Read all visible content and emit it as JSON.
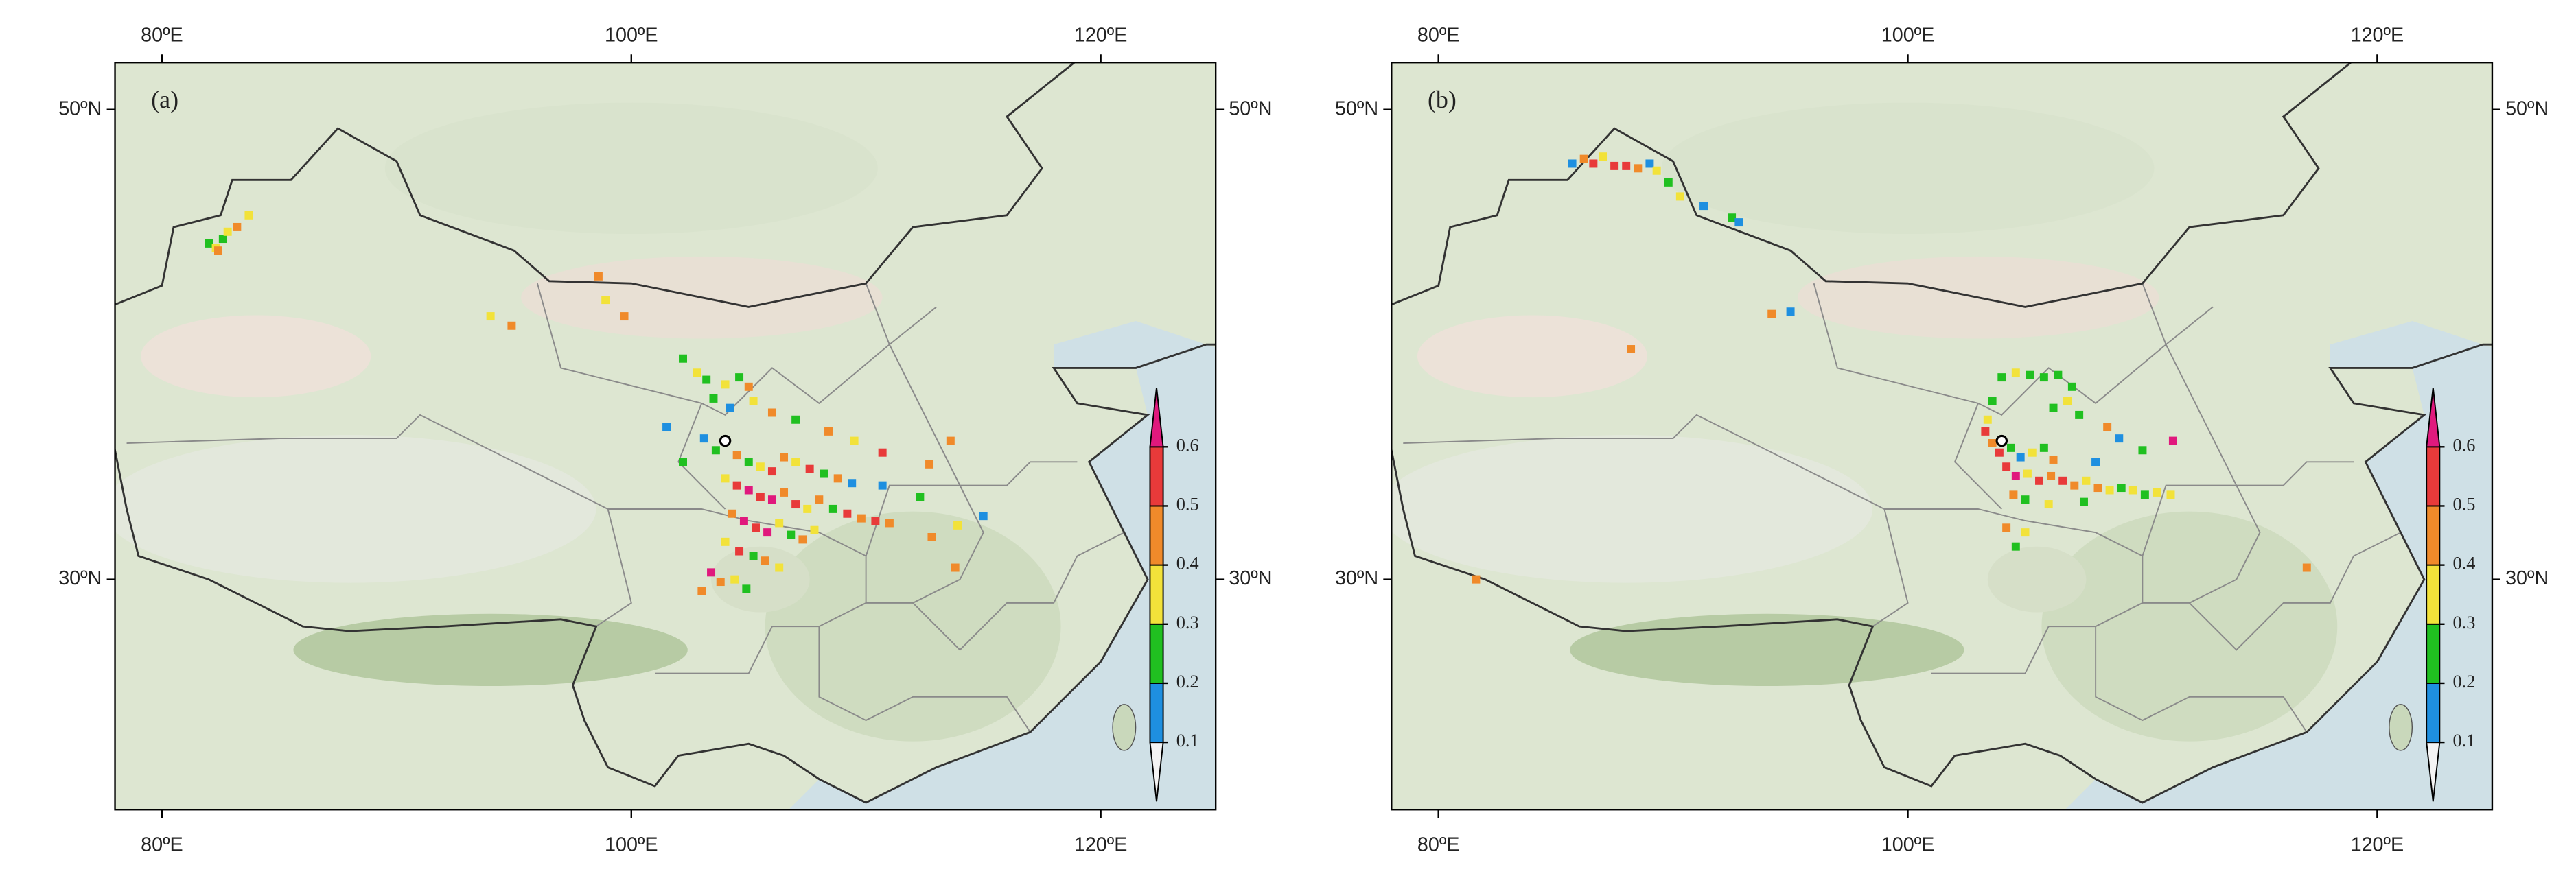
{
  "lonlim": [
    78,
    124.9
  ],
  "latlim": [
    20.2,
    52
  ],
  "lon_ticks": [
    {
      "value": 80,
      "label": "80ºE"
    },
    {
      "value": 100,
      "label": "100ºE"
    },
    {
      "value": 120,
      "label": "120ºE"
    }
  ],
  "lat_ticks": [
    {
      "value": 50,
      "label": "50ºN"
    },
    {
      "value": 30,
      "label": "30ºN"
    }
  ],
  "colorbar": {
    "bounds": [
      0,
      0.1,
      0.2,
      0.3,
      0.4,
      0.5,
      0.6,
      0.7
    ],
    "colors": [
      "#f4f4f4",
      "#1e8fe0",
      "#20c020",
      "#f2e23a",
      "#f08a2a",
      "#e83a3a",
      "#e0197d"
    ],
    "ticks": [
      0.1,
      0.2,
      0.3,
      0.4,
      0.5,
      0.6
    ]
  },
  "panels": [
    {
      "label": "(a)",
      "site": {
        "lon": 104.0,
        "lat": 35.9
      },
      "cells": [
        [
          82.0,
          44.3,
          0.25
        ],
        [
          82.3,
          44.1,
          0.35
        ],
        [
          82.6,
          44.5,
          0.25
        ],
        [
          82.4,
          44.0,
          0.45
        ],
        [
          83.2,
          45.0,
          0.45
        ],
        [
          83.7,
          45.5,
          0.35
        ],
        [
          82.8,
          44.8,
          0.35
        ],
        [
          98.6,
          42.9,
          0.45
        ],
        [
          98.9,
          41.9,
          0.35
        ],
        [
          99.7,
          41.2,
          0.45
        ],
        [
          94.9,
          40.8,
          0.45
        ],
        [
          94.0,
          41.2,
          0.35
        ],
        [
          102.2,
          39.4,
          0.25
        ],
        [
          102.8,
          38.8,
          0.35
        ],
        [
          103.2,
          38.5,
          0.25
        ],
        [
          104.0,
          38.3,
          0.35
        ],
        [
          104.6,
          38.6,
          0.25
        ],
        [
          105.0,
          38.2,
          0.45
        ],
        [
          103.5,
          37.7,
          0.25
        ],
        [
          104.2,
          37.3,
          0.15
        ],
        [
          105.2,
          37.6,
          0.35
        ],
        [
          106.0,
          37.1,
          0.45
        ],
        [
          107.0,
          36.8,
          0.25
        ],
        [
          108.4,
          36.3,
          0.45
        ],
        [
          109.5,
          35.9,
          0.35
        ],
        [
          110.7,
          35.4,
          0.55
        ],
        [
          112.7,
          34.9,
          0.45
        ],
        [
          103.1,
          36.0,
          0.15
        ],
        [
          103.6,
          35.5,
          0.25
        ],
        [
          104.5,
          35.3,
          0.45
        ],
        [
          105.0,
          35.0,
          0.25
        ],
        [
          105.5,
          34.8,
          0.35
        ],
        [
          106.0,
          34.6,
          0.55
        ],
        [
          106.5,
          35.2,
          0.45
        ],
        [
          107.0,
          35.0,
          0.35
        ],
        [
          107.6,
          34.7,
          0.55
        ],
        [
          108.2,
          34.5,
          0.25
        ],
        [
          108.8,
          34.3,
          0.45
        ],
        [
          109.4,
          34.1,
          0.15
        ],
        [
          104.0,
          34.3,
          0.35
        ],
        [
          104.5,
          34.0,
          0.55
        ],
        [
          105.0,
          33.8,
          0.65
        ],
        [
          105.5,
          33.5,
          0.55
        ],
        [
          106.0,
          33.4,
          0.65
        ],
        [
          106.5,
          33.7,
          0.45
        ],
        [
          107.0,
          33.2,
          0.55
        ],
        [
          107.5,
          33.0,
          0.35
        ],
        [
          108.0,
          33.4,
          0.45
        ],
        [
          108.6,
          33.0,
          0.25
        ],
        [
          109.2,
          32.8,
          0.55
        ],
        [
          109.8,
          32.6,
          0.45
        ],
        [
          110.4,
          32.5,
          0.55
        ],
        [
          111.0,
          32.4,
          0.45
        ],
        [
          104.3,
          32.8,
          0.45
        ],
        [
          104.8,
          32.5,
          0.65
        ],
        [
          105.3,
          32.2,
          0.55
        ],
        [
          105.8,
          32.0,
          0.65
        ],
        [
          106.3,
          32.4,
          0.35
        ],
        [
          106.8,
          31.9,
          0.25
        ],
        [
          107.3,
          31.7,
          0.45
        ],
        [
          107.8,
          32.1,
          0.35
        ],
        [
          104.0,
          31.6,
          0.35
        ],
        [
          104.6,
          31.2,
          0.55
        ],
        [
          105.2,
          31.0,
          0.25
        ],
        [
          105.7,
          30.8,
          0.45
        ],
        [
          106.3,
          30.5,
          0.35
        ],
        [
          103.4,
          30.3,
          0.65
        ],
        [
          103.8,
          29.9,
          0.45
        ],
        [
          104.4,
          30.0,
          0.35
        ],
        [
          103.0,
          29.5,
          0.45
        ],
        [
          104.9,
          29.6,
          0.25
        ],
        [
          112.8,
          31.8,
          0.45
        ],
        [
          113.8,
          30.5,
          0.45
        ],
        [
          113.6,
          35.9,
          0.45
        ],
        [
          113.9,
          32.3,
          0.35
        ],
        [
          112.3,
          33.5,
          0.25
        ],
        [
          101.5,
          36.5,
          0.15
        ],
        [
          102.2,
          35.0,
          0.25
        ],
        [
          110.7,
          34.0,
          0.15
        ],
        [
          115.0,
          32.7,
          0.15
        ]
      ]
    },
    {
      "label": "(b)",
      "site": {
        "lon": 104.0,
        "lat": 35.9
      },
      "cells": [
        [
          85.7,
          47.7,
          0.15
        ],
        [
          86.2,
          47.9,
          0.45
        ],
        [
          86.6,
          47.7,
          0.55
        ],
        [
          87.0,
          48.0,
          0.35
        ],
        [
          87.5,
          47.6,
          0.55
        ],
        [
          88.0,
          47.6,
          0.55
        ],
        [
          88.5,
          47.5,
          0.45
        ],
        [
          89.0,
          47.7,
          0.15
        ],
        [
          89.3,
          47.4,
          0.35
        ],
        [
          89.8,
          46.9,
          0.25
        ],
        [
          90.3,
          46.3,
          0.35
        ],
        [
          91.3,
          45.9,
          0.15
        ],
        [
          92.5,
          45.4,
          0.25
        ],
        [
          92.8,
          45.2,
          0.15
        ],
        [
          94.2,
          41.3,
          0.45
        ],
        [
          95.0,
          41.4,
          0.15
        ],
        [
          88.2,
          39.8,
          0.45
        ],
        [
          81.6,
          30.0,
          0.45
        ],
        [
          117.0,
          30.5,
          0.45
        ],
        [
          104.0,
          38.6,
          0.25
        ],
        [
          104.6,
          38.8,
          0.35
        ],
        [
          105.2,
          38.7,
          0.25
        ],
        [
          105.8,
          38.6,
          0.25
        ],
        [
          106.4,
          38.7,
          0.25
        ],
        [
          107.0,
          38.2,
          0.25
        ],
        [
          106.8,
          37.6,
          0.35
        ],
        [
          106.2,
          37.3,
          0.25
        ],
        [
          107.3,
          37.0,
          0.25
        ],
        [
          103.6,
          37.6,
          0.25
        ],
        [
          103.4,
          36.8,
          0.35
        ],
        [
          103.3,
          36.3,
          0.55
        ],
        [
          103.6,
          35.8,
          0.45
        ],
        [
          103.9,
          35.4,
          0.55
        ],
        [
          104.4,
          35.6,
          0.25
        ],
        [
          104.8,
          35.2,
          0.15
        ],
        [
          105.3,
          35.4,
          0.35
        ],
        [
          105.8,
          35.6,
          0.25
        ],
        [
          106.2,
          35.1,
          0.45
        ],
        [
          104.2,
          34.8,
          0.55
        ],
        [
          104.6,
          34.4,
          0.65
        ],
        [
          105.1,
          34.5,
          0.35
        ],
        [
          105.6,
          34.2,
          0.55
        ],
        [
          106.1,
          34.4,
          0.45
        ],
        [
          106.6,
          34.2,
          0.55
        ],
        [
          107.1,
          34.0,
          0.45
        ],
        [
          107.6,
          34.2,
          0.35
        ],
        [
          108.1,
          33.9,
          0.45
        ],
        [
          108.6,
          33.8,
          0.35
        ],
        [
          109.1,
          33.9,
          0.25
        ],
        [
          109.6,
          33.8,
          0.35
        ],
        [
          110.1,
          33.6,
          0.25
        ],
        [
          110.6,
          33.7,
          0.35
        ],
        [
          111.2,
          33.6,
          0.35
        ],
        [
          104.5,
          33.6,
          0.45
        ],
        [
          105.0,
          33.4,
          0.25
        ],
        [
          106.0,
          33.2,
          0.35
        ],
        [
          107.5,
          33.3,
          0.25
        ],
        [
          104.2,
          32.2,
          0.45
        ],
        [
          105.0,
          32.0,
          0.35
        ],
        [
          104.6,
          31.4,
          0.25
        ],
        [
          108.5,
          36.5,
          0.45
        ],
        [
          109.0,
          36.0,
          0.15
        ],
        [
          110.0,
          35.5,
          0.25
        ],
        [
          111.3,
          35.9,
          0.65
        ],
        [
          108.0,
          35.0,
          0.15
        ]
      ]
    }
  ]
}
